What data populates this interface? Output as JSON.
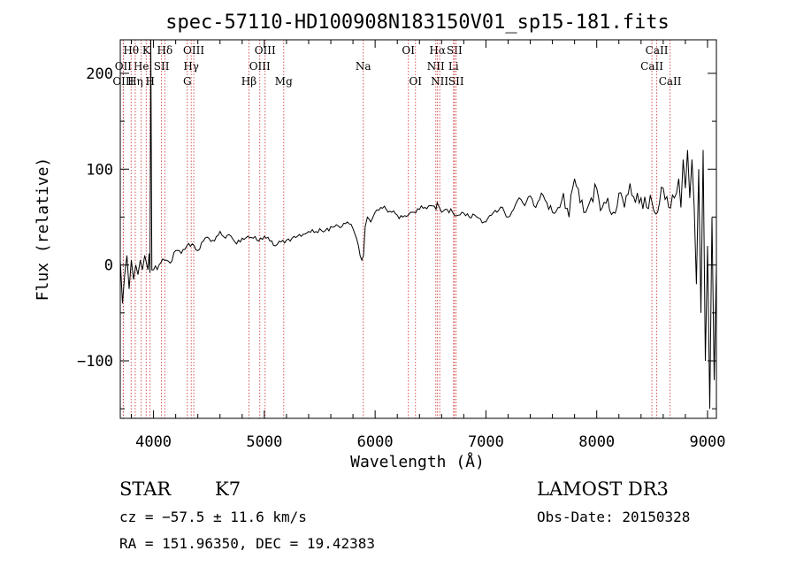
{
  "chart_data": {
    "type": "line",
    "title": "spec-57110-HD100908N183150V01_sp15-181.fits",
    "xlabel": "Wavelength (Å)",
    "ylabel": "Flux (relative)",
    "xlim": [
      3700,
      9080
    ],
    "ylim": [
      -160,
      235
    ],
    "xticks": [
      4000,
      5000,
      6000,
      7000,
      8000,
      9000
    ],
    "xtick_labels": [
      "4000",
      "5000",
      "6000",
      "7000",
      "8000",
      "9000"
    ],
    "yticks": [
      -100,
      0,
      100,
      200
    ],
    "ytick_labels": [
      "−100",
      "0",
      "100",
      "200"
    ],
    "series": [
      {
        "name": "spectrum",
        "x": [
          3700,
          3720,
          3740,
          3760,
          3780,
          3800,
          3820,
          3840,
          3860,
          3880,
          3900,
          3920,
          3940,
          3950,
          3960,
          3968,
          3975,
          3985,
          4000,
          4050,
          4100,
          4150,
          4200,
          4250,
          4300,
          4350,
          4400,
          4450,
          4500,
          4550,
          4600,
          4650,
          4700,
          4750,
          4800,
          4850,
          4900,
          4950,
          5000,
          5050,
          5100,
          5150,
          5200,
          5250,
          5300,
          5350,
          5400,
          5450,
          5500,
          5550,
          5600,
          5650,
          5700,
          5750,
          5800,
          5850,
          5880,
          5895,
          5910,
          5930,
          5960,
          6000,
          6050,
          6100,
          6150,
          6200,
          6250,
          6300,
          6350,
          6400,
          6450,
          6500,
          6550,
          6560,
          6580,
          6600,
          6650,
          6700,
          6750,
          6800,
          6850,
          6900,
          6950,
          7000,
          7050,
          7100,
          7150,
          7200,
          7250,
          7300,
          7350,
          7400,
          7450,
          7500,
          7550,
          7600,
          7650,
          7700,
          7750,
          7800,
          7850,
          7900,
          7950,
          8000,
          8050,
          8100,
          8150,
          8200,
          8250,
          8300,
          8350,
          8400,
          8450,
          8500,
          8550,
          8600,
          8650,
          8700,
          8720,
          8740,
          8760,
          8780,
          8800,
          8820,
          8840,
          8860,
          8880,
          8900,
          8920,
          8940,
          8960,
          8980,
          9000,
          9020,
          9040,
          9060,
          9080
        ],
        "y": [
          5,
          -40,
          -10,
          10,
          -25,
          5,
          -15,
          0,
          -10,
          5,
          -5,
          10,
          0,
          -5,
          12,
          -8,
          235,
          -5,
          -5,
          0,
          5,
          2,
          15,
          12,
          20,
          22,
          15,
          25,
          28,
          25,
          35,
          28,
          30,
          22,
          28,
          30,
          28,
          25,
          30,
          25,
          20,
          24,
          26,
          28,
          30,
          32,
          35,
          34,
          38,
          36,
          40,
          42,
          40,
          45,
          38,
          20,
          5,
          10,
          40,
          50,
          45,
          55,
          60,
          58,
          55,
          52,
          50,
          52,
          55,
          58,
          60,
          62,
          58,
          65,
          60,
          55,
          58,
          55,
          52,
          54,
          50,
          52,
          48,
          45,
          52,
          55,
          60,
          50,
          58,
          70,
          62,
          72,
          60,
          75,
          65,
          55,
          60,
          75,
          50,
          90,
          65,
          55,
          70,
          80,
          60,
          70,
          55,
          75,
          60,
          85,
          65,
          70,
          60,
          65,
          55,
          80,
          60,
          70,
          75,
          90,
          60,
          110,
          80,
          120,
          70,
          110,
          60,
          -20,
          100,
          -50,
          120,
          -100,
          20,
          -150,
          50,
          -120,
          0
        ]
      }
    ],
    "lines": [
      {
        "name": "Hθ",
        "wl": 3798,
        "row": 0
      },
      {
        "name": "K",
        "wl": 3934,
        "row": 0
      },
      {
        "name": "Hδ",
        "wl": 4102,
        "row": 0
      },
      {
        "name": "OIII",
        "wl": 4363,
        "row": 0
      },
      {
        "name": "OIII",
        "wl": 5007,
        "row": 0
      },
      {
        "name": "OI",
        "wl": 6300,
        "row": 0
      },
      {
        "name": "Hα",
        "wl": 6563,
        "row": 0
      },
      {
        "name": "SII",
        "wl": 6716,
        "row": 0
      },
      {
        "name": "CaII",
        "wl": 8542,
        "row": 0
      },
      {
        "name": "OII",
        "wl": 3727,
        "row": 1
      },
      {
        "name": "He",
        "wl": 3889,
        "row": 1
      },
      {
        "name": "SII",
        "wl": 4072,
        "row": 1
      },
      {
        "name": "Hγ",
        "wl": 4340,
        "row": 1
      },
      {
        "name": "OIII",
        "wl": 4959,
        "row": 1
      },
      {
        "name": "Na",
        "wl": 5893,
        "row": 1
      },
      {
        "name": "NII",
        "wl": 6548,
        "row": 1
      },
      {
        "name": "Li",
        "wl": 6708,
        "row": 1
      },
      {
        "name": "CaII",
        "wl": 8498,
        "row": 1
      },
      {
        "name": "OIII",
        "wl": 3727,
        "row": 2
      },
      {
        "name": "Hη",
        "wl": 3835,
        "row": 2
      },
      {
        "name": "H",
        "wl": 3969,
        "row": 2
      },
      {
        "name": "G",
        "wl": 4305,
        "row": 2
      },
      {
        "name": "Hβ",
        "wl": 4861,
        "row": 2
      },
      {
        "name": "Mg",
        "wl": 5175,
        "row": 2
      },
      {
        "name": "OI",
        "wl": 6364,
        "row": 2
      },
      {
        "name": "NII",
        "wl": 6583,
        "row": 2
      },
      {
        "name": "SII",
        "wl": 6731,
        "row": 2
      },
      {
        "name": "CaII",
        "wl": 8662,
        "row": 2
      }
    ]
  },
  "info": {
    "object_class": "STAR",
    "subclass": "K7",
    "survey": "LAMOST DR3",
    "redshift": "cz = −57.5 ± 11.6 km/s",
    "obs_date": "Obs-Date: 20150328",
    "coords": "RA = 151.96350, DEC =  19.42383"
  }
}
